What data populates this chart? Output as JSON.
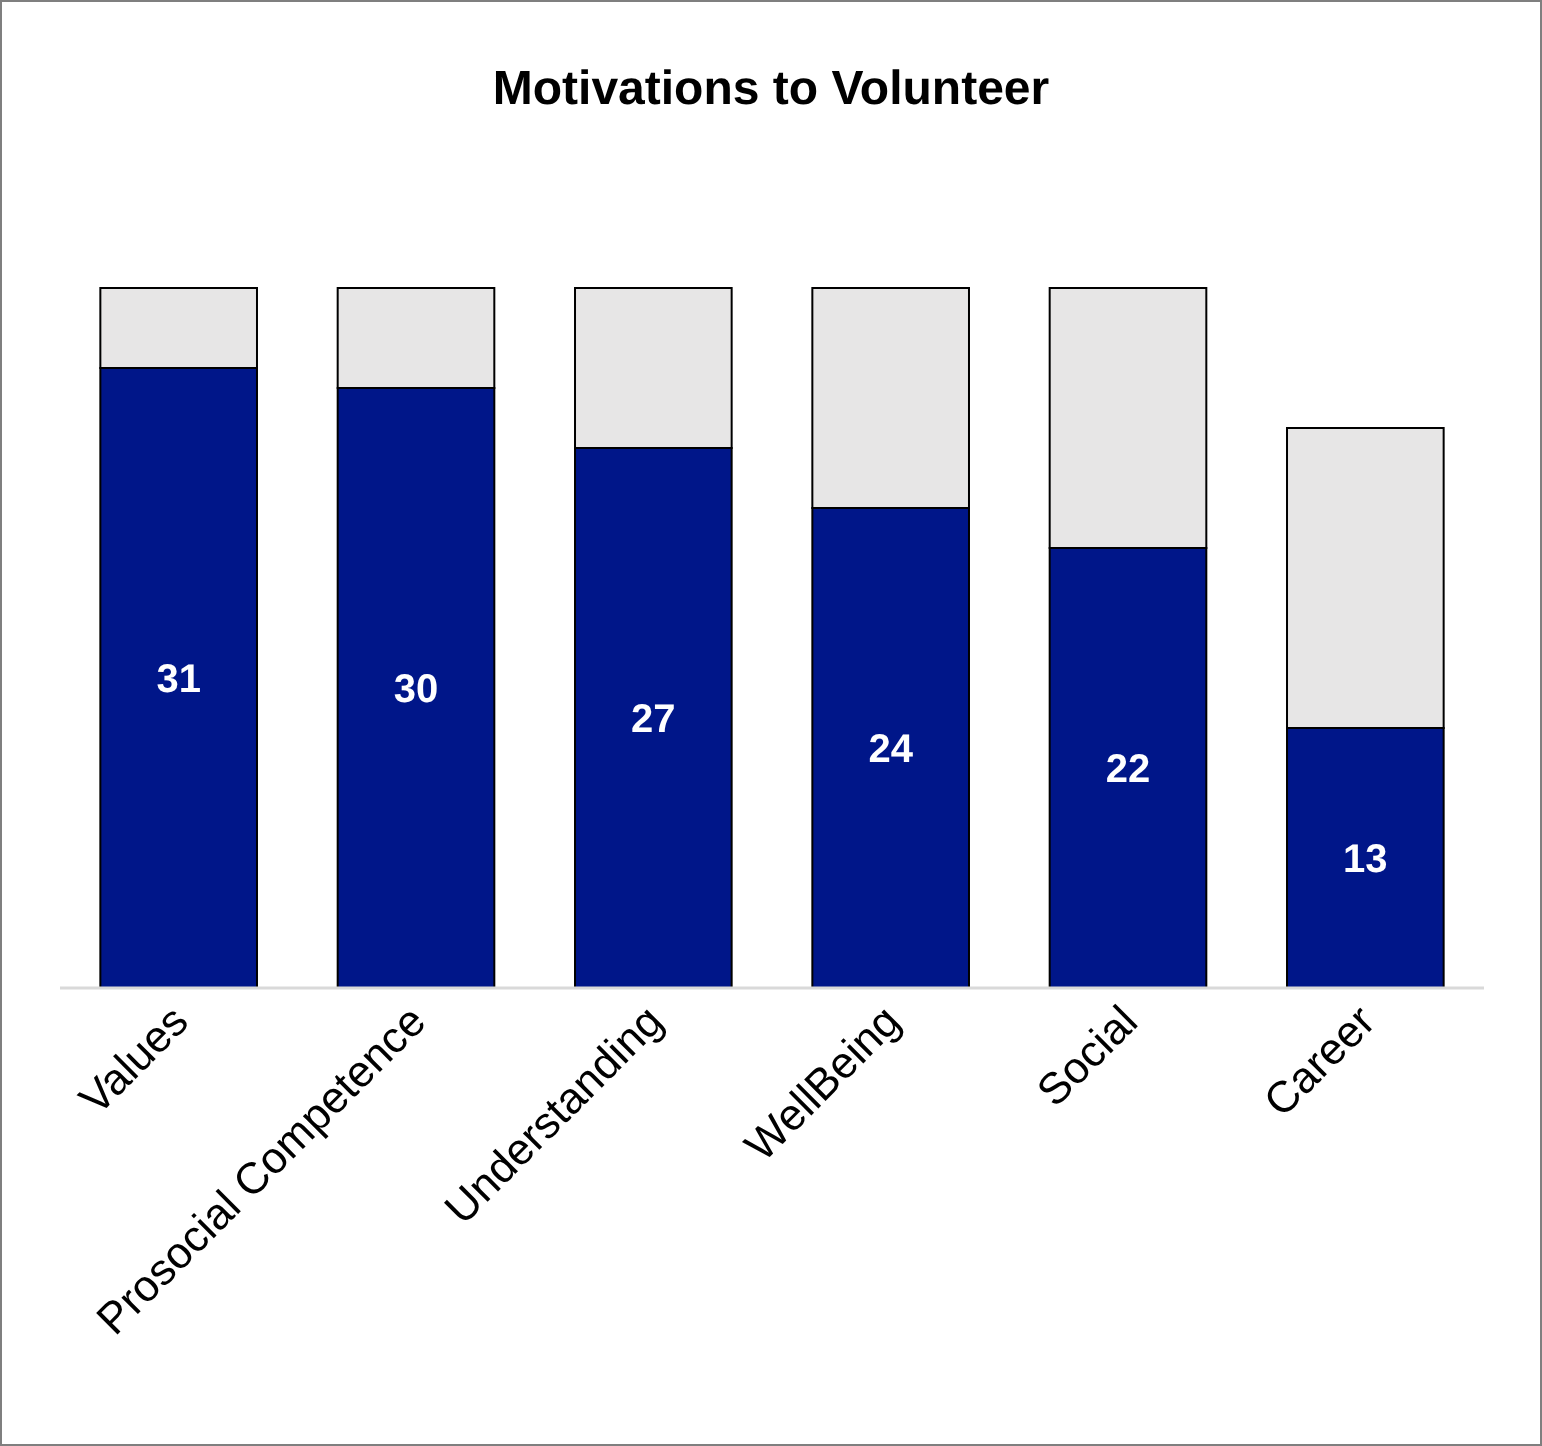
{
  "chart_data": {
    "type": "bar",
    "title": "Motivations to Volunteer",
    "categories": [
      "Values",
      "Prosocial Competence",
      "Understanding",
      "WellBeing",
      "Social",
      "Career"
    ],
    "stacked": true,
    "series": [
      {
        "color": "#001689",
        "values": [
          31,
          30,
          27,
          24,
          22,
          13
        ],
        "value_labels": [
          "31",
          "30",
          "27",
          "24",
          "22",
          "13"
        ]
      },
      {
        "color": "#e7e6e6",
        "values": [
          4,
          5,
          8,
          11,
          13,
          15
        ]
      }
    ]
  }
}
